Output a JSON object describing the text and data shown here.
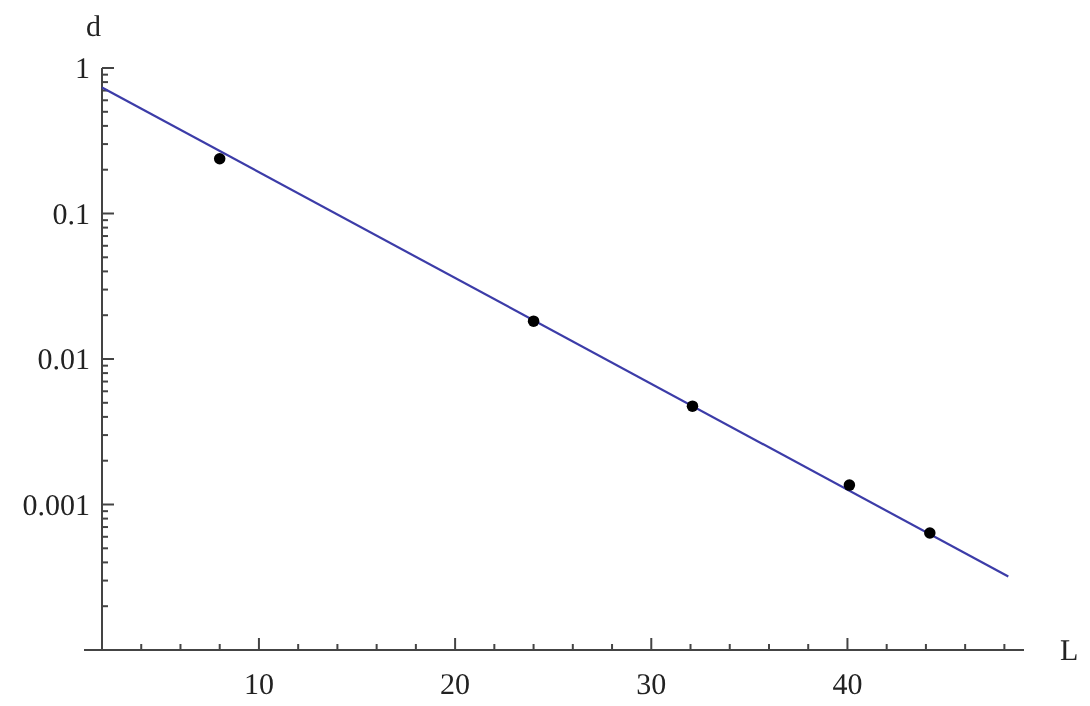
{
  "chart_data": {
    "type": "scatter",
    "xlabel": "L",
    "ylabel": "d",
    "log": "y",
    "grid": false,
    "xlim": [
      2,
      49
    ],
    "xticks": [
      {
        "value": 4,
        "label": null
      },
      {
        "value": 6,
        "label": null
      },
      {
        "value": 8,
        "label": null
      },
      10,
      {
        "value": 12,
        "label": null
      },
      {
        "value": 14,
        "label": null
      },
      {
        "value": 16,
        "label": null
      },
      {
        "value": 18,
        "label": null
      },
      20,
      {
        "value": 22,
        "label": null
      },
      {
        "value": 24,
        "label": null
      },
      {
        "value": 26,
        "label": null
      },
      {
        "value": 28,
        "label": null
      },
      30,
      {
        "value": 32,
        "label": null
      },
      {
        "value": 34,
        "label": null
      },
      {
        "value": 36,
        "label": null
      },
      {
        "value": 38,
        "label": null
      },
      40,
      {
        "value": 42,
        "label": null
      },
      {
        "value": 44,
        "label": null
      },
      {
        "value": 46,
        "label": null
      },
      {
        "value": 48,
        "label": null
      }
    ],
    "ylim": [
      0.0001,
      1
    ],
    "yticks": [
      {
        "value": 0.0002,
        "label": null
      },
      {
        "value": 0.0003,
        "label": null
      },
      {
        "value": 0.0004,
        "label": null
      },
      {
        "value": 0.0005,
        "label": null
      },
      {
        "value": 0.0006,
        "label": null
      },
      {
        "value": 0.0007,
        "label": null
      },
      {
        "value": 0.0008,
        "label": null
      },
      {
        "value": 0.0009,
        "label": null
      },
      0.001,
      {
        "value": 0.002,
        "label": null
      },
      {
        "value": 0.003,
        "label": null
      },
      {
        "value": 0.004,
        "label": null
      },
      {
        "value": 0.005,
        "label": null
      },
      {
        "value": 0.006,
        "label": null
      },
      {
        "value": 0.007,
        "label": null
      },
      {
        "value": 0.008,
        "label": null
      },
      {
        "value": 0.009,
        "label": null
      },
      0.01,
      {
        "value": 0.02,
        "label": null
      },
      {
        "value": 0.03,
        "label": null
      },
      {
        "value": 0.04,
        "label": null
      },
      {
        "value": 0.05,
        "label": null
      },
      {
        "value": 0.06,
        "label": null
      },
      {
        "value": 0.07,
        "label": null
      },
      {
        "value": 0.08,
        "label": null
      },
      {
        "value": 0.09,
        "label": null
      },
      0.1,
      {
        "value": 0.2,
        "label": null
      },
      {
        "value": 0.3,
        "label": null
      },
      {
        "value": 0.4,
        "label": null
      },
      {
        "value": 0.5,
        "label": null
      },
      {
        "value": 0.6,
        "label": null
      },
      {
        "value": 0.7,
        "label": null
      },
      {
        "value": 0.8,
        "label": null
      },
      {
        "value": 0.9,
        "label": null
      },
      1
    ],
    "series": [
      {
        "type": "line",
        "color": "#3c3ca8",
        "line_style": "solid",
        "marker": "none",
        "x": [
          2,
          48.2
        ],
        "values": [
          0.735,
          0.00032
        ]
      },
      {
        "color": "#000000",
        "marker": "circle",
        "x": [
          8,
          24,
          32.1,
          40.1,
          44.2
        ],
        "values": [
          0.238,
          0.0182,
          0.00474,
          0.00136,
          0.000637
        ]
      }
    ]
  }
}
